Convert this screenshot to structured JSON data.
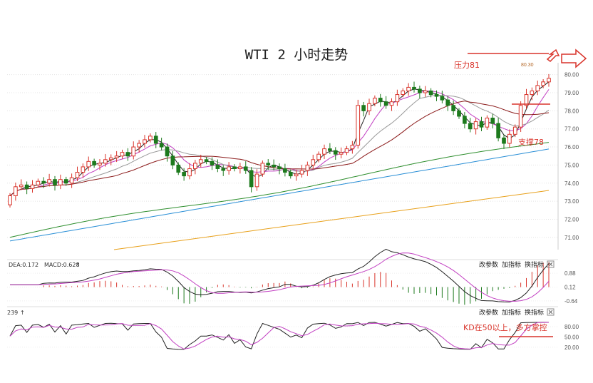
{
  "title": "WTI 2 小时走势",
  "chart_data": [
    {
      "type": "candlestick",
      "title": "WTI 2 小时走势",
      "y_ticks": [
        "71.00",
        "72.00",
        "73.00",
        "74.00",
        "75.00",
        "76.00",
        "77.00",
        "78.00",
        "79.00",
        "80.00"
      ],
      "ylim": [
        70.4,
        80.5
      ],
      "high_label": "80.30",
      "annotations": {
        "resistance": "压力81",
        "support": "支撑78"
      },
      "closes": [
        73.3,
        73.8,
        73.9,
        73.7,
        73.9,
        74.1,
        74.0,
        74.2,
        73.9,
        74.2,
        74.0,
        74.3,
        74.6,
        74.9,
        75.2,
        75.0,
        75.1,
        75.3,
        75.4,
        75.5,
        75.7,
        75.5,
        76.0,
        76.2,
        76.4,
        76.6,
        76.2,
        76.0,
        75.5,
        75.0,
        74.6,
        74.4,
        74.8,
        75.1,
        75.3,
        75.2,
        75.0,
        74.8,
        74.7,
        74.9,
        74.8,
        74.9,
        74.7,
        73.8,
        74.5,
        75.1,
        75.0,
        74.9,
        74.8,
        74.6,
        74.4,
        74.5,
        74.7,
        75.0,
        75.3,
        75.6,
        75.9,
        75.8,
        75.6,
        75.7,
        75.9,
        76.1,
        78.3,
        78.0,
        78.4,
        78.7,
        78.5,
        78.3,
        78.5,
        78.9,
        79.1,
        79.3,
        79.2,
        79.0,
        79.1,
        78.9,
        78.8,
        78.6,
        78.3,
        78.0,
        77.7,
        77.3,
        77.0,
        77.4,
        77.1,
        77.6,
        77.3,
        76.5,
        76.2,
        76.7,
        77.1,
        78.3,
        78.9,
        79.1,
        79.4,
        79.6,
        79.8
      ],
      "ma_series_colors": [
        "#222222",
        "#c23fc2",
        "#999999",
        "#8b1a1a",
        "#2f8f2f",
        "#2a8fd6",
        "#e8a01a"
      ]
    },
    {
      "type": "macd",
      "labels": {
        "dea": "DEA:0.172",
        "macd": "MACD:0.628"
      },
      "y_ticks": [
        "0.88",
        "0.12",
        "-0.64"
      ],
      "ylim": [
        -0.8,
        1.0
      ]
    },
    {
      "type": "kd",
      "label": "239",
      "y_ticks": [
        "80.00",
        "50.00",
        "20.00"
      ],
      "ylim": [
        5,
        105
      ],
      "annotation": "KD在50以上，多方掌控"
    }
  ],
  "panel_buttons": {
    "params": "改参数",
    "add_indicator": "加指标",
    "switch_indicator": "换指标"
  },
  "colors": {
    "up": "#d9342b",
    "down": "#1d7a1d",
    "annotation": "#d9342b"
  }
}
